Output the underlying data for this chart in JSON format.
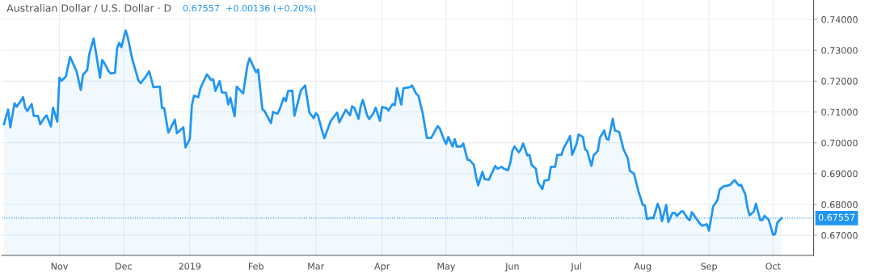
{
  "chart_data": {
    "type": "area",
    "title": "Australian Dollar / U.S. Dollar · D",
    "subtitle": "0.67557  +0.00136 (+0.20%)",
    "xlim": [
      "2018-10-05",
      "2019-10-20"
    ],
    "xticks": [
      {
        "value": "2018-11-01",
        "label": "Nov"
      },
      {
        "value": "2018-12-01",
        "label": "Dec"
      },
      {
        "value": "2019-01-01",
        "label": "2019"
      },
      {
        "value": "2019-02-01",
        "label": "Feb"
      },
      {
        "value": "2019-03-01",
        "label": "Mar"
      },
      {
        "value": "2019-04-01",
        "label": "Apr"
      },
      {
        "value": "2019-05-01",
        "label": "May"
      },
      {
        "value": "2019-06-01",
        "label": "Jun"
      },
      {
        "value": "2019-07-01",
        "label": "Jul"
      },
      {
        "value": "2019-08-01",
        "label": "Aug"
      },
      {
        "value": "2019-09-01",
        "label": "Sep"
      },
      {
        "value": "2019-10-01",
        "label": "Oct"
      }
    ],
    "ylim": [
      0.6635,
      0.7463
    ],
    "yticks": [
      {
        "value": 0.67,
        "label": "0.67000"
      },
      {
        "value": 0.68,
        "label": "0.68000"
      },
      {
        "value": 0.69,
        "label": "0.69000"
      },
      {
        "value": 0.7,
        "label": "0.70000"
      },
      {
        "value": 0.71,
        "label": "0.71000"
      },
      {
        "value": 0.72,
        "label": "0.72000"
      },
      {
        "value": 0.73,
        "label": "0.73000"
      },
      {
        "value": 0.74,
        "label": "0.74000"
      }
    ],
    "grid": true,
    "ref_lines": [
      {
        "axis": "y",
        "value": 0.67557,
        "label": "0.67557",
        "color": "#2196f3",
        "line_style": "dotted"
      }
    ],
    "series": [
      {
        "color": "#2196f3",
        "x": [
          "2018-10-06",
          "2018-10-08",
          "2018-10-09",
          "2018-10-11",
          "2018-10-12",
          "2018-10-14",
          "2018-10-15",
          "2018-10-16",
          "2018-10-17",
          "2018-10-19",
          "2018-10-20",
          "2018-10-22",
          "2018-10-23",
          "2018-10-25",
          "2018-10-26",
          "2018-10-28",
          "2018-10-29",
          "2018-10-31",
          "2018-11-01",
          "2018-11-02",
          "2018-11-04",
          "2018-11-06",
          "2018-11-09",
          "2018-11-11",
          "2018-11-12",
          "2018-11-14",
          "2018-11-15",
          "2018-11-17",
          "2018-11-18",
          "2018-11-20",
          "2018-11-21",
          "2018-11-22",
          "2018-11-24",
          "2018-11-25",
          "2018-11-27",
          "2018-11-28",
          "2018-11-29",
          "2018-11-30",
          "2018-12-02",
          "2018-12-03",
          "2018-12-05",
          "2018-12-08",
          "2018-12-09",
          "2018-12-11",
          "2018-12-13",
          "2018-12-15",
          "2018-12-18",
          "2018-12-19",
          "2018-12-20",
          "2018-12-22",
          "2018-12-25",
          "2018-12-26",
          "2018-12-29",
          "2018-12-30",
          "2019-01-01",
          "2019-01-02",
          "2019-01-03",
          "2019-01-05",
          "2019-01-06",
          "2019-01-09",
          "2019-01-11",
          "2019-01-12",
          "2019-01-13",
          "2019-01-15",
          "2019-01-16",
          "2019-01-18",
          "2019-01-19",
          "2019-01-20",
          "2019-01-22",
          "2019-01-23",
          "2019-01-26",
          "2019-01-28",
          "2019-01-29",
          "2019-02-01",
          "2019-02-02",
          "2019-02-04",
          "2019-02-05",
          "2019-02-08",
          "2019-02-09",
          "2019-02-11",
          "2019-02-12",
          "2019-02-14",
          "2019-02-15",
          "2019-02-16",
          "2019-02-18",
          "2019-02-19",
          "2019-02-22",
          "2019-02-24",
          "2019-02-26",
          "2019-02-28",
          "2019-03-01",
          "2019-03-02",
          "2019-03-04",
          "2019-03-05",
          "2019-03-08",
          "2019-03-11",
          "2019-03-12",
          "2019-03-15",
          "2019-03-17",
          "2019-03-18",
          "2019-03-19",
          "2019-03-21",
          "2019-03-22",
          "2019-03-23",
          "2019-03-25",
          "2019-03-26",
          "2019-03-28",
          "2019-03-29",
          "2019-03-31",
          "2019-04-01",
          "2019-04-03",
          "2019-04-04",
          "2019-04-06",
          "2019-04-07",
          "2019-04-08",
          "2019-04-10",
          "2019-04-11",
          "2019-04-14",
          "2019-04-15",
          "2019-04-17",
          "2019-04-18",
          "2019-04-20",
          "2019-04-22",
          "2019-04-24",
          "2019-04-27",
          "2019-04-28",
          "2019-04-30",
          "2019-05-01",
          "2019-05-02",
          "2019-05-04",
          "2019-05-05",
          "2019-05-06",
          "2019-05-08",
          "2019-05-09",
          "2019-05-11",
          "2019-05-12",
          "2019-05-14",
          "2019-05-15",
          "2019-05-16",
          "2019-05-18",
          "2019-05-19",
          "2019-05-21",
          "2019-05-22",
          "2019-05-24",
          "2019-05-25",
          "2019-05-27",
          "2019-05-28",
          "2019-05-30",
          "2019-05-31",
          "2019-06-01",
          "2019-06-02",
          "2019-06-04",
          "2019-06-05",
          "2019-06-06",
          "2019-06-08",
          "2019-06-09",
          "2019-06-10",
          "2019-06-12",
          "2019-06-13",
          "2019-06-15",
          "2019-06-16",
          "2019-06-18",
          "2019-06-19",
          "2019-06-21",
          "2019-06-22",
          "2019-06-24",
          "2019-06-25",
          "2019-06-27",
          "2019-06-28",
          "2019-06-29",
          "2019-07-01",
          "2019-07-02",
          "2019-07-04",
          "2019-07-05",
          "2019-07-06",
          "2019-07-08",
          "2019-07-09",
          "2019-07-11",
          "2019-07-12",
          "2019-07-14",
          "2019-07-15",
          "2019-07-16",
          "2019-07-18",
          "2019-07-19",
          "2019-07-21",
          "2019-07-22",
          "2019-07-23",
          "2019-07-25",
          "2019-07-26",
          "2019-07-28",
          "2019-07-29",
          "2019-07-30",
          "2019-08-01",
          "2019-08-02",
          "2019-08-03",
          "2019-08-05",
          "2019-08-06",
          "2019-08-08",
          "2019-08-09",
          "2019-08-10",
          "2019-08-12",
          "2019-08-13",
          "2019-08-15",
          "2019-08-16",
          "2019-08-17",
          "2019-08-19",
          "2019-08-20",
          "2019-08-22",
          "2019-08-23",
          "2019-08-24",
          "2019-08-26",
          "2019-08-28",
          "2019-08-29",
          "2019-08-31",
          "2019-09-01",
          "2019-09-03",
          "2019-09-05",
          "2019-09-06",
          "2019-09-08",
          "2019-09-09",
          "2019-09-11",
          "2019-09-13",
          "2019-09-15",
          "2019-09-16",
          "2019-09-18",
          "2019-09-19",
          "2019-09-20",
          "2019-09-22",
          "2019-09-23",
          "2019-09-25",
          "2019-09-26",
          "2019-09-27",
          "2019-09-29",
          "2019-10-01",
          "2019-10-02",
          "2019-10-03",
          "2019-10-05"
        ],
        "values": [
          0.706,
          0.7108,
          0.705,
          0.7128,
          0.7117,
          0.7137,
          0.7148,
          0.7113,
          0.7103,
          0.7126,
          0.7087,
          0.7087,
          0.706,
          0.7082,
          0.7089,
          0.7053,
          0.7114,
          0.7069,
          0.7211,
          0.7201,
          0.7215,
          0.7279,
          0.7232,
          0.7171,
          0.722,
          0.7236,
          0.7288,
          0.7338,
          0.7297,
          0.7211,
          0.7268,
          0.7259,
          0.7232,
          0.7225,
          0.7227,
          0.7307,
          0.7324,
          0.731,
          0.7364,
          0.7342,
          0.7274,
          0.7202,
          0.7193,
          0.7211,
          0.7232,
          0.718,
          0.7182,
          0.7113,
          0.7113,
          0.7033,
          0.7075,
          0.7031,
          0.705,
          0.6985,
          0.7012,
          0.7123,
          0.7153,
          0.7148,
          0.7177,
          0.7222,
          0.7204,
          0.7206,
          0.7168,
          0.72,
          0.7164,
          0.7162,
          0.7124,
          0.7146,
          0.7086,
          0.7182,
          0.716,
          0.7252,
          0.7274,
          0.7229,
          0.7238,
          0.7109,
          0.7103,
          0.7064,
          0.71,
          0.7094,
          0.7107,
          0.7146,
          0.7135,
          0.7168,
          0.7169,
          0.7088,
          0.717,
          0.7186,
          0.7098,
          0.708,
          0.7096,
          0.7089,
          0.7037,
          0.7015,
          0.7071,
          0.7098,
          0.7066,
          0.7107,
          0.7089,
          0.7118,
          0.7114,
          0.7078,
          0.7118,
          0.7139,
          0.7089,
          0.7077,
          0.7096,
          0.7114,
          0.7071,
          0.7116,
          0.7113,
          0.7105,
          0.7126,
          0.7122,
          0.7177,
          0.7124,
          0.7177,
          0.718,
          0.7186,
          0.7159,
          0.7153,
          0.7097,
          0.7016,
          0.7016,
          0.7054,
          0.7047,
          0.701,
          0.6996,
          0.7019,
          0.6988,
          0.7012,
          0.6988,
          0.6988,
          0.6998,
          0.6945,
          0.6944,
          0.6928,
          0.6891,
          0.6862,
          0.6906,
          0.6882,
          0.688,
          0.6896,
          0.6925,
          0.6916,
          0.6922,
          0.6916,
          0.6911,
          0.6935,
          0.6974,
          0.6988,
          0.6969,
          0.6979,
          0.6998,
          0.6959,
          0.6961,
          0.6928,
          0.6916,
          0.6872,
          0.685,
          0.6877,
          0.688,
          0.6922,
          0.6922,
          0.6961,
          0.6961,
          0.6983,
          0.7008,
          0.7022,
          0.6961,
          0.6996,
          0.7027,
          0.7019,
          0.6979,
          0.6974,
          0.6925,
          0.6959,
          0.6974,
          0.7017,
          0.704,
          0.7013,
          0.701,
          0.7078,
          0.704,
          0.7035,
          0.7008,
          0.6979,
          0.695,
          0.6909,
          0.6899,
          0.687,
          0.6843,
          0.6799,
          0.6797,
          0.6753,
          0.6757,
          0.6755,
          0.6802,
          0.6784,
          0.6746,
          0.6799,
          0.6743,
          0.6773,
          0.6773,
          0.6763,
          0.6777,
          0.6777,
          0.6755,
          0.6749,
          0.6775,
          0.6755,
          0.6736,
          0.6731,
          0.6736,
          0.6715,
          0.6794,
          0.6814,
          0.6848,
          0.686,
          0.686,
          0.6864,
          0.6879,
          0.6862,
          0.6864,
          0.6833,
          0.6791,
          0.6765,
          0.6777,
          0.6802,
          0.675,
          0.6749,
          0.6763,
          0.675,
          0.6702,
          0.6704,
          0.6741,
          0.6756
        ]
      }
    ]
  }
}
